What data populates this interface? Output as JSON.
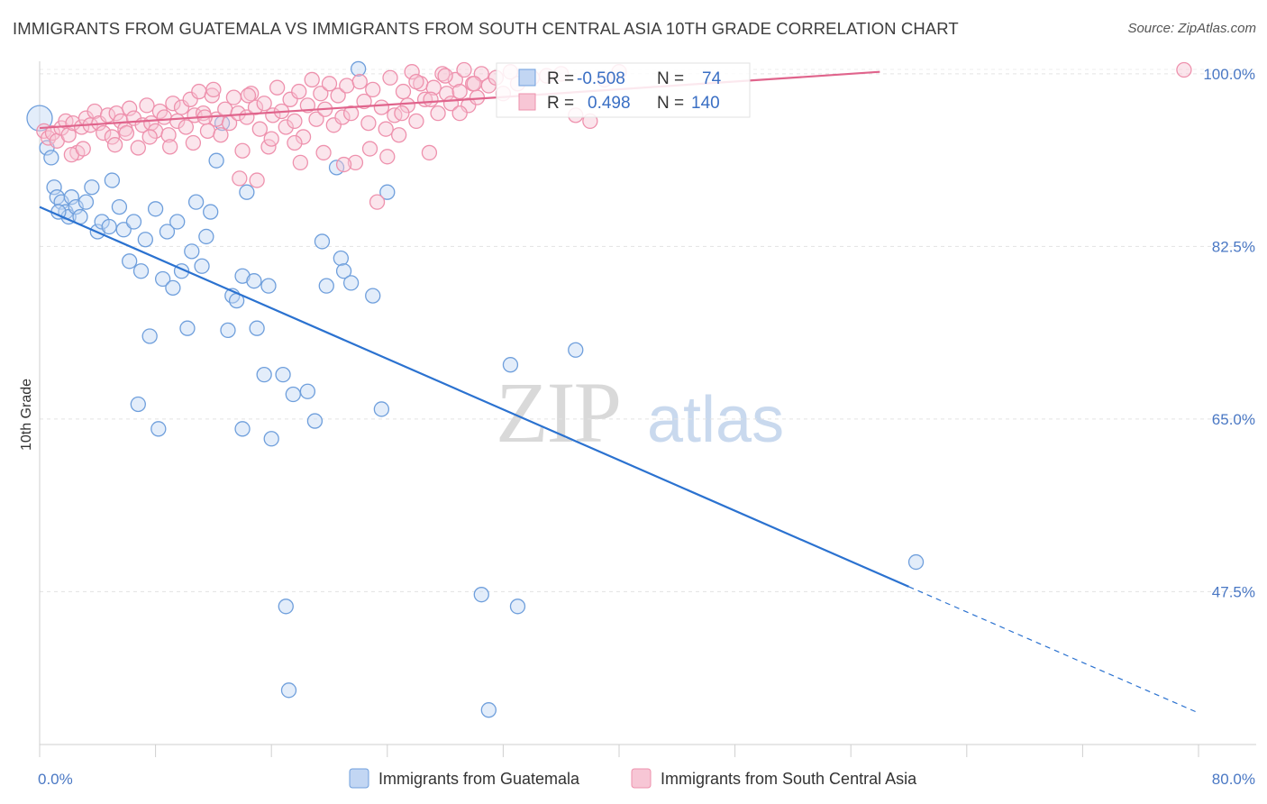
{
  "title": "IMMIGRANTS FROM GUATEMALA VS IMMIGRANTS FROM SOUTH CENTRAL ASIA 10TH GRADE CORRELATION CHART",
  "source": "Source: ZipAtlas.com",
  "watermark": {
    "zip": "ZIP",
    "atlas": "atlas"
  },
  "chart_data": {
    "type": "scatter",
    "title": "IMMIGRANTS FROM GUATEMALA VS IMMIGRANTS FROM SOUTH CENTRAL ASIA 10TH GRADE CORRELATION CHART",
    "xlabel": "",
    "ylabel": "10th Grade",
    "xlim": [
      0,
      80
    ],
    "ylim": [
      32,
      102
    ],
    "x_tick_labels": [
      "0.0%",
      "80.0%"
    ],
    "y_ticks": [
      47.5,
      65.0,
      82.5,
      100.0
    ],
    "y_tick_labels": [
      "47.5%",
      "65.0%",
      "82.5%",
      "100.0%"
    ],
    "grid": true,
    "legend_position": "top-center",
    "legend": {
      "r_label": "R =",
      "n_label": "N =",
      "entries": [
        {
          "r": "-0.508",
          "n": "74"
        },
        {
          "r": "0.498",
          "n": "140"
        }
      ]
    },
    "series": [
      {
        "name": "Immigrants from Guatemala",
        "color": "#6f9fdc",
        "fill": "#c2d6f3",
        "line_color": "#2b72d0",
        "trend": {
          "x0": 0,
          "y0": 86.5,
          "x1": 60,
          "y1": 48.0,
          "dash_to_x": 80,
          "dash_to_y": 35.2
        },
        "points": [
          [
            0.0,
            95.5
          ],
          [
            0.5,
            92.5
          ],
          [
            0.8,
            91.5
          ],
          [
            1.0,
            88.5
          ],
          [
            1.2,
            87.5
          ],
          [
            1.5,
            87.0
          ],
          [
            1.8,
            86.0
          ],
          [
            2.0,
            85.5
          ],
          [
            2.2,
            87.5
          ],
          [
            2.5,
            86.5
          ],
          [
            2.8,
            85.5
          ],
          [
            3.2,
            87.0
          ],
          [
            3.6,
            88.5
          ],
          [
            4.0,
            84.0
          ],
          [
            4.3,
            85.0
          ],
          [
            4.8,
            84.5
          ],
          [
            5.0,
            89.2
          ],
          [
            5.5,
            86.5
          ],
          [
            5.8,
            84.2
          ],
          [
            6.2,
            81.0
          ],
          [
            6.5,
            85.0
          ],
          [
            7.0,
            80.0
          ],
          [
            7.3,
            83.2
          ],
          [
            7.6,
            73.4
          ],
          [
            8.0,
            86.3
          ],
          [
            8.5,
            79.2
          ],
          [
            8.8,
            84.0
          ],
          [
            9.2,
            78.3
          ],
          [
            9.5,
            85.0
          ],
          [
            9.8,
            80.0
          ],
          [
            10.2,
            74.2
          ],
          [
            10.5,
            82.0
          ],
          [
            10.8,
            87.0
          ],
          [
            11.2,
            80.5
          ],
          [
            11.5,
            83.5
          ],
          [
            11.8,
            86.0
          ],
          [
            12.2,
            91.2
          ],
          [
            12.6,
            95.0
          ],
          [
            13.0,
            74.0
          ],
          [
            13.3,
            77.5
          ],
          [
            13.6,
            77.0
          ],
          [
            14.0,
            79.5
          ],
          [
            14.3,
            88.0
          ],
          [
            14.8,
            79.0
          ],
          [
            15.0,
            74.2
          ],
          [
            15.5,
            69.5
          ],
          [
            15.8,
            78.5
          ],
          [
            16.0,
            63.0
          ],
          [
            16.8,
            69.5
          ],
          [
            17.0,
            46.0
          ],
          [
            17.5,
            67.5
          ],
          [
            17.2,
            37.5
          ],
          [
            18.5,
            67.8
          ],
          [
            19.0,
            64.8
          ],
          [
            19.5,
            83.0
          ],
          [
            19.8,
            78.5
          ],
          [
            20.5,
            90.5
          ],
          [
            20.8,
            81.3
          ],
          [
            21.0,
            80.0
          ],
          [
            21.5,
            78.8
          ],
          [
            22.0,
            100.5
          ],
          [
            23.0,
            77.5
          ],
          [
            23.6,
            66.0
          ],
          [
            24.0,
            88.0
          ],
          [
            6.8,
            66.5
          ],
          [
            8.2,
            64.0
          ],
          [
            14.0,
            64.0
          ],
          [
            30.5,
            47.2
          ],
          [
            31.0,
            35.5
          ],
          [
            32.5,
            70.5
          ],
          [
            33.0,
            46.0
          ],
          [
            37.0,
            72.0
          ],
          [
            60.5,
            50.5
          ],
          [
            1.3,
            86.0
          ]
        ]
      },
      {
        "name": "Immigrants from South Central Asia",
        "color": "#ee91ad",
        "fill": "#f7c6d5",
        "line_color": "#e0648c",
        "trend": {
          "x0": 0,
          "y0": 94.5,
          "x1": 58,
          "y1": 100.2
        },
        "points": [
          [
            0.3,
            94.2
          ],
          [
            0.6,
            93.5
          ],
          [
            0.9,
            94.0
          ],
          [
            1.2,
            93.2
          ],
          [
            1.5,
            94.5
          ],
          [
            1.8,
            95.2
          ],
          [
            2.0,
            93.8
          ],
          [
            2.3,
            95.0
          ],
          [
            2.6,
            92.0
          ],
          [
            2.9,
            94.6
          ],
          [
            3.2,
            95.5
          ],
          [
            3.5,
            94.8
          ],
          [
            3.8,
            96.2
          ],
          [
            4.1,
            95.0
          ],
          [
            4.4,
            94.0
          ],
          [
            4.7,
            95.8
          ],
          [
            5.0,
            93.6
          ],
          [
            5.3,
            96.0
          ],
          [
            5.6,
            95.2
          ],
          [
            5.9,
            94.4
          ],
          [
            6.2,
            96.5
          ],
          [
            6.5,
            95.5
          ],
          [
            6.8,
            92.5
          ],
          [
            7.1,
            94.8
          ],
          [
            7.4,
            96.8
          ],
          [
            7.7,
            95.0
          ],
          [
            8.0,
            94.2
          ],
          [
            8.3,
            96.2
          ],
          [
            8.6,
            95.6
          ],
          [
            8.9,
            93.8
          ],
          [
            9.2,
            97.0
          ],
          [
            9.5,
            95.2
          ],
          [
            9.8,
            96.6
          ],
          [
            10.1,
            94.6
          ],
          [
            10.4,
            97.4
          ],
          [
            10.7,
            95.8
          ],
          [
            11.0,
            98.2
          ],
          [
            11.3,
            96.0
          ],
          [
            11.6,
            94.2
          ],
          [
            11.9,
            97.8
          ],
          [
            12.2,
            95.4
          ],
          [
            12.5,
            93.8
          ],
          [
            12.8,
            96.4
          ],
          [
            13.1,
            95.0
          ],
          [
            13.4,
            97.6
          ],
          [
            13.7,
            96.0
          ],
          [
            14.0,
            92.2
          ],
          [
            14.3,
            95.6
          ],
          [
            14.6,
            98.0
          ],
          [
            14.9,
            96.6
          ],
          [
            15.2,
            94.4
          ],
          [
            15.5,
            97.0
          ],
          [
            15.8,
            92.6
          ],
          [
            16.1,
            95.8
          ],
          [
            16.4,
            98.6
          ],
          [
            16.7,
            96.2
          ],
          [
            17.0,
            94.6
          ],
          [
            17.3,
            97.4
          ],
          [
            17.6,
            95.2
          ],
          [
            17.9,
            98.2
          ],
          [
            18.2,
            93.6
          ],
          [
            18.5,
            96.8
          ],
          [
            18.8,
            99.4
          ],
          [
            19.1,
            95.4
          ],
          [
            19.4,
            98.0
          ],
          [
            19.7,
            96.4
          ],
          [
            20.0,
            99.0
          ],
          [
            20.3,
            94.8
          ],
          [
            20.6,
            97.8
          ],
          [
            20.9,
            95.6
          ],
          [
            21.2,
            98.8
          ],
          [
            21.5,
            96.0
          ],
          [
            21.8,
            91.0
          ],
          [
            22.1,
            99.2
          ],
          [
            22.4,
            97.2
          ],
          [
            22.7,
            95.0
          ],
          [
            23.0,
            98.4
          ],
          [
            23.3,
            87.0
          ],
          [
            23.6,
            96.6
          ],
          [
            23.9,
            94.4
          ],
          [
            24.2,
            99.6
          ],
          [
            24.5,
            95.8
          ],
          [
            24.8,
            93.8
          ],
          [
            25.1,
            98.2
          ],
          [
            25.4,
            96.8
          ],
          [
            25.7,
            100.2
          ],
          [
            26.0,
            95.2
          ],
          [
            26.3,
            99.0
          ],
          [
            26.6,
            97.4
          ],
          [
            26.9,
            92.0
          ],
          [
            27.2,
            98.6
          ],
          [
            27.5,
            96.0
          ],
          [
            27.8,
            100.0
          ],
          [
            28.1,
            98.0
          ],
          [
            28.4,
            97.0
          ],
          [
            28.7,
            99.4
          ],
          [
            29.0,
            98.2
          ],
          [
            29.3,
            100.4
          ],
          [
            29.6,
            96.8
          ],
          [
            29.9,
            99.0
          ],
          [
            30.2,
            97.6
          ],
          [
            30.5,
            100.0
          ],
          [
            31.0,
            98.8
          ],
          [
            31.5,
            99.6
          ],
          [
            32.0,
            98.0
          ],
          [
            32.5,
            100.2
          ],
          [
            33.0,
            99.0
          ],
          [
            34.0,
            99.6
          ],
          [
            35.0,
            99.8
          ],
          [
            36.0,
            100.0
          ],
          [
            37.0,
            95.8
          ],
          [
            38.0,
            95.2
          ],
          [
            39.0,
            99.4
          ],
          [
            40.0,
            100.2
          ],
          [
            79.0,
            100.4
          ],
          [
            5.2,
            92.8
          ],
          [
            9.0,
            92.6
          ],
          [
            12.0,
            98.4
          ],
          [
            13.8,
            89.4
          ],
          [
            15.0,
            89.2
          ],
          [
            18.0,
            91.0
          ],
          [
            21.0,
            90.8
          ],
          [
            25.0,
            96.0
          ],
          [
            27.0,
            97.4
          ],
          [
            29.0,
            96.0
          ],
          [
            30.0,
            99.0
          ],
          [
            2.2,
            91.8
          ],
          [
            3.0,
            92.4
          ],
          [
            6.0,
            94.0
          ],
          [
            7.6,
            93.6
          ],
          [
            10.6,
            93.0
          ],
          [
            11.4,
            95.6
          ],
          [
            14.4,
            97.8
          ],
          [
            16.0,
            93.4
          ],
          [
            17.6,
            93.0
          ],
          [
            19.6,
            92.0
          ],
          [
            22.8,
            92.4
          ],
          [
            24.0,
            91.6
          ],
          [
            26.0,
            99.2
          ],
          [
            28.0,
            99.8
          ]
        ]
      }
    ]
  },
  "bottom_legend": [
    {
      "label": "Immigrants from Guatemala"
    },
    {
      "label": "Immigrants from South Central Asia"
    }
  ]
}
